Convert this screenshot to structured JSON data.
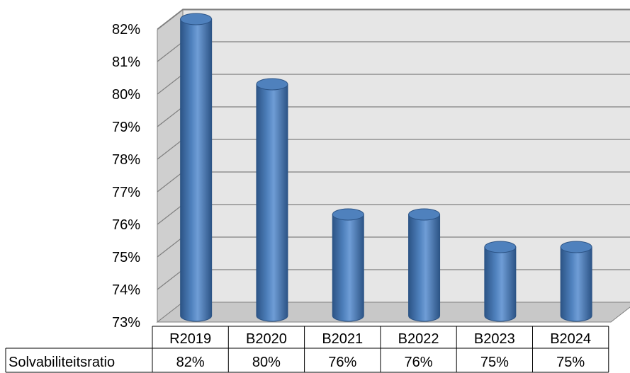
{
  "chart_data": {
    "type": "bar",
    "style": "3d-cylinder",
    "categories": [
      "R2019",
      "B2020",
      "B2021",
      "B2022",
      "B2023",
      "B2024"
    ],
    "series": [
      {
        "name": "Solvabiliteitsratio",
        "values": [
          82,
          80,
          76,
          76,
          75,
          75
        ]
      }
    ],
    "value_labels": [
      "82%",
      "80%",
      "76%",
      "76%",
      "75%",
      "75%"
    ],
    "y_ticks": [
      "73%",
      "74%",
      "75%",
      "76%",
      "77%",
      "78%",
      "79%",
      "80%",
      "81%",
      "82%"
    ],
    "ylim": [
      73,
      82
    ],
    "unit": "%",
    "grid": true,
    "legend": "data-table-below",
    "colors": {
      "bar": "#4f81bd",
      "bar_dark": "#2c5486",
      "bar_light": "#8eb4e3",
      "wall": "#e6e6e6",
      "side_wall": "#cfcfcf",
      "floor": "#c8c8c8",
      "grid": "#7f7f7f"
    }
  }
}
